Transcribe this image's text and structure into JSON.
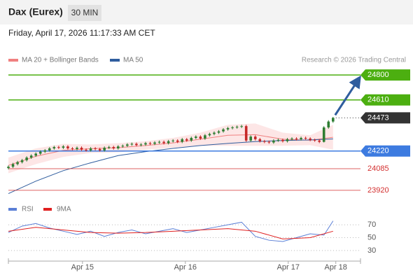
{
  "chart_data": {
    "type": "candlestick",
    "title": "Dax (Eurex)",
    "timeframe": "30 MIN",
    "timestamp": "Friday, April 17, 2026 11:17:33 AM CET",
    "legend": [
      {
        "name": "MA 20 + Bollinger Bands",
        "color": "#f08080"
      },
      {
        "name": "MA 50",
        "color": "#2f5d9e"
      }
    ],
    "credit": "Research © 2026 Trading Central",
    "xlim": [
      0,
      77
    ],
    "xticks": [
      {
        "value": 16.2,
        "label": "Apr 15"
      },
      {
        "value": 38.7,
        "label": "Apr 16"
      },
      {
        "value": 61.2,
        "label": "Apr 17"
      },
      {
        "value": 71.6,
        "label": "Apr 18"
      }
    ],
    "ylim": [
      23850,
      24865
    ],
    "up_color": "#2e7d32",
    "down_color": "#c62828",
    "candles": [
      [
        24090,
        24110,
        24080,
        24100
      ],
      [
        24100,
        24130,
        24090,
        24120
      ],
      [
        24120,
        24145,
        24110,
        24135
      ],
      [
        24135,
        24160,
        24125,
        24150
      ],
      [
        24150,
        24180,
        24140,
        24170
      ],
      [
        24170,
        24195,
        24160,
        24185
      ],
      [
        24185,
        24210,
        24175,
        24200
      ],
      [
        24200,
        24225,
        24190,
        24215
      ],
      [
        24215,
        24235,
        24205,
        24225
      ],
      [
        24225,
        24250,
        24215,
        24240
      ],
      [
        24240,
        24260,
        24230,
        24250
      ],
      [
        24250,
        24260,
        24235,
        24245
      ],
      [
        24245,
        24265,
        24235,
        24255
      ],
      [
        24255,
        24265,
        24230,
        24240
      ],
      [
        24240,
        24250,
        24225,
        24235
      ],
      [
        24235,
        24255,
        24225,
        24245
      ],
      [
        24245,
        24255,
        24220,
        24230
      ],
      [
        24230,
        24240,
        24215,
        24225
      ],
      [
        24225,
        24250,
        24215,
        24240
      ],
      [
        24240,
        24250,
        24225,
        24235
      ],
      [
        24235,
        24245,
        24215,
        24225
      ],
      [
        24225,
        24255,
        24215,
        24245
      ],
      [
        24245,
        24260,
        24235,
        24250
      ],
      [
        24250,
        24260,
        24230,
        24240
      ],
      [
        24240,
        24265,
        24230,
        24255
      ],
      [
        24255,
        24270,
        24245,
        24260
      ],
      [
        24260,
        24280,
        24250,
        24270
      ],
      [
        24270,
        24285,
        24260,
        24275
      ],
      [
        24275,
        24285,
        24255,
        24265
      ],
      [
        24265,
        24280,
        24255,
        24270
      ],
      [
        24270,
        24290,
        24260,
        24280
      ],
      [
        24280,
        24290,
        24265,
        24275
      ],
      [
        24275,
        24295,
        24265,
        24285
      ],
      [
        24285,
        24300,
        24275,
        24290
      ],
      [
        24290,
        24300,
        24270,
        24280
      ],
      [
        24280,
        24305,
        24270,
        24295
      ],
      [
        24295,
        24310,
        24285,
        24300
      ],
      [
        24300,
        24310,
        24280,
        24290
      ],
      [
        24290,
        24320,
        24280,
        24310
      ],
      [
        24310,
        24320,
        24290,
        24300
      ],
      [
        24300,
        24330,
        24290,
        24320
      ],
      [
        24320,
        24340,
        24310,
        24330
      ],
      [
        24330,
        24340,
        24305,
        24315
      ],
      [
        24315,
        24350,
        24305,
        24340
      ],
      [
        24340,
        24360,
        24330,
        24350
      ],
      [
        24350,
        24370,
        24340,
        24360
      ],
      [
        24360,
        24380,
        24350,
        24370
      ],
      [
        24370,
        24395,
        24360,
        24385
      ],
      [
        24385,
        24405,
        24375,
        24395
      ],
      [
        24395,
        24410,
        24385,
        24400
      ],
      [
        24400,
        24415,
        24390,
        24405
      ],
      [
        24405,
        24420,
        24395,
        24410
      ],
      [
        24410,
        24420,
        24290,
        24300
      ],
      [
        24300,
        24340,
        24290,
        24330
      ],
      [
        24330,
        24340,
        24300,
        24310
      ],
      [
        24310,
        24320,
        24285,
        24295
      ],
      [
        24295,
        24305,
        24280,
        24290
      ],
      [
        24290,
        24300,
        24275,
        24285
      ],
      [
        24285,
        24310,
        24275,
        24300
      ],
      [
        24300,
        24315,
        24290,
        24305
      ],
      [
        24305,
        24315,
        24285,
        24295
      ],
      [
        24295,
        24320,
        24285,
        24310
      ],
      [
        24310,
        24325,
        24300,
        24315
      ],
      [
        24315,
        24325,
        24300,
        24310
      ],
      [
        24310,
        24330,
        24300,
        24320
      ],
      [
        24320,
        24330,
        24305,
        24315
      ],
      [
        24315,
        24325,
        24295,
        24305
      ],
      [
        24305,
        24315,
        24290,
        24300
      ],
      [
        24300,
        24310,
        24280,
        24290
      ],
      [
        24290,
        24410,
        24285,
        24400
      ],
      [
        24400,
        24455,
        24390,
        24445
      ],
      [
        24445,
        24480,
        24435,
        24473
      ]
    ],
    "ma_x": [
      0,
      6,
      12,
      18,
      24,
      30,
      36,
      42,
      48,
      54,
      60,
      66,
      71
    ],
    "ma20": [
      24110,
      24180,
      24225,
      24238,
      24245,
      24262,
      24282,
      24310,
      24340,
      24345,
      24310,
      24302,
      24325
    ],
    "bb_upper": [
      24170,
      24240,
      24275,
      24270,
      24280,
      24295,
      24320,
      24360,
      24420,
      24430,
      24360,
      24340,
      24420
    ],
    "bb_lower": [
      24050,
      24120,
      24175,
      24205,
      24210,
      24230,
      24245,
      24260,
      24260,
      24260,
      24260,
      24265,
      24230
    ],
    "ma50": [
      23895,
      23990,
      24070,
      24130,
      24185,
      24215,
      24240,
      24262,
      24278,
      24292,
      24300,
      24305,
      24312
    ],
    "levels": [
      {
        "value": 24800,
        "color": "#4caf10",
        "style": "box"
      },
      {
        "value": 24610,
        "color": "#4caf10",
        "style": "box"
      },
      {
        "value": 24473,
        "color": "#333333",
        "style": "dotted"
      },
      {
        "value": 24220,
        "color": "#3d7be0",
        "style": "box"
      },
      {
        "value": 24085,
        "color": "#d32f2f",
        "style": "text"
      },
      {
        "value": 23920,
        "color": "#d32f2f",
        "style": "text"
      }
    ],
    "rsi": {
      "legend": [
        {
          "name": "RSI",
          "color": "#5b7fd6"
        },
        {
          "name": "9MA",
          "color": "#e02020"
        }
      ],
      "ylim": [
        19,
        93
      ],
      "yticks": [
        70,
        50,
        30
      ],
      "x": [
        0,
        3,
        6,
        9,
        12,
        15,
        18,
        21,
        24,
        27,
        30,
        33,
        36,
        39,
        42,
        45,
        48,
        51,
        54,
        57,
        60,
        63,
        66,
        69,
        71
      ],
      "values": [
        58,
        68,
        72,
        65,
        60,
        55,
        60,
        52,
        58,
        62,
        56,
        60,
        64,
        58,
        62,
        66,
        70,
        74,
        52,
        46,
        44,
        50,
        56,
        54,
        76
      ],
      "ma_x": [
        0,
        6,
        12,
        18,
        24,
        30,
        36,
        42,
        48,
        54,
        60,
        66,
        71
      ],
      "ma": [
        60,
        66,
        62,
        58,
        57,
        58,
        60,
        62,
        64,
        60,
        48,
        50,
        60
      ]
    }
  }
}
